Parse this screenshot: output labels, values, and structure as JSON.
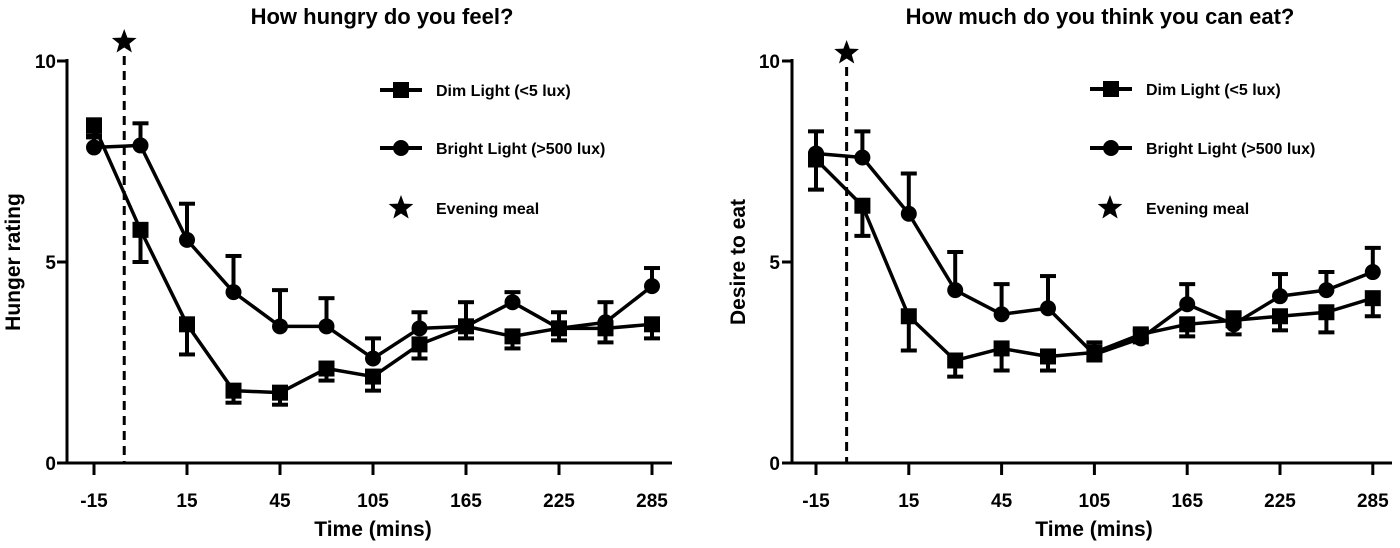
{
  "chart_data": [
    {
      "type": "line",
      "title": "How hungry do you feel?",
      "xlabel": "Time (mins)",
      "ylabel": "Hunger rating",
      "ylim": [
        0,
        10
      ],
      "yticks": [
        "0",
        "5",
        "10"
      ],
      "x": [
        -15,
        0,
        15,
        30,
        45,
        75,
        105,
        135,
        165,
        195,
        225,
        255,
        285
      ],
      "xtick_labels": [
        "-15",
        "15",
        "45",
        "105",
        "165",
        "225",
        "285"
      ],
      "grid": false,
      "legend_position": "top-right",
      "series": [
        {
          "name": "Dim Light (<5 lux)",
          "marker": "square",
          "values": [
            8.4,
            5.8,
            3.45,
            1.8,
            1.75,
            2.35,
            2.15,
            2.95,
            3.4,
            3.15,
            3.35,
            3.35,
            3.45
          ],
          "error": [
            0.3,
            0.8,
            0.75,
            0.3,
            0.3,
            0.3,
            0.35,
            0.35,
            0.3,
            0.3,
            0.3,
            0.35,
            0.35
          ],
          "error_direction": "down"
        },
        {
          "name": "Bright Light (>500 lux)",
          "marker": "circle",
          "values": [
            7.85,
            7.9,
            5.55,
            4.25,
            3.4,
            3.4,
            2.6,
            3.35,
            3.4,
            4.0,
            3.35,
            3.5,
            4.4
          ],
          "error": [
            0.3,
            0.55,
            0.9,
            0.9,
            0.9,
            0.7,
            0.5,
            0.4,
            0.6,
            0.25,
            0.4,
            0.5,
            0.45
          ],
          "error_direction": "up"
        }
      ],
      "annotations": [
        {
          "label": "Evening meal",
          "marker": "star",
          "x_between": [
            -15,
            0
          ],
          "style": "dashed vertical line"
        }
      ]
    },
    {
      "type": "line",
      "title": "How much do you think you can eat?",
      "xlabel": "Time (mins)",
      "ylabel": "Desire to eat",
      "ylim": [
        0,
        10
      ],
      "yticks": [
        "0",
        "5",
        "10"
      ],
      "x": [
        -15,
        0,
        15,
        30,
        45,
        75,
        105,
        135,
        165,
        195,
        225,
        255,
        285
      ],
      "xtick_labels": [
        "-15",
        "15",
        "45",
        "105",
        "165",
        "225",
        "285"
      ],
      "grid": false,
      "legend_position": "top-right",
      "series": [
        {
          "name": "Dim Light (<5 lux)",
          "marker": "square",
          "values": [
            7.55,
            6.4,
            3.65,
            2.55,
            2.85,
            2.65,
            2.75,
            3.2,
            3.45,
            3.55,
            3.65,
            3.75,
            4.1
          ],
          "error": [
            0.75,
            0.75,
            0.85,
            0.4,
            0.55,
            0.35,
            0.2,
            0.2,
            0.3,
            0.35,
            0.35,
            0.5,
            0.45
          ],
          "error_direction": "down"
        },
        {
          "name": "Bright Light (>500 lux)",
          "marker": "circle",
          "values": [
            7.7,
            7.6,
            6.2,
            4.3,
            3.7,
            3.85,
            2.7,
            3.1,
            3.95,
            3.45,
            4.15,
            4.3,
            4.75
          ],
          "error": [
            0.55,
            0.65,
            1.0,
            0.95,
            0.75,
            0.8,
            0.3,
            0.2,
            0.5,
            0.3,
            0.55,
            0.45,
            0.6
          ],
          "error_direction": "up"
        }
      ],
      "annotations": [
        {
          "label": "Evening meal",
          "marker": "star",
          "x_between": [
            -15,
            0
          ],
          "style": "dashed vertical line"
        }
      ]
    }
  ]
}
